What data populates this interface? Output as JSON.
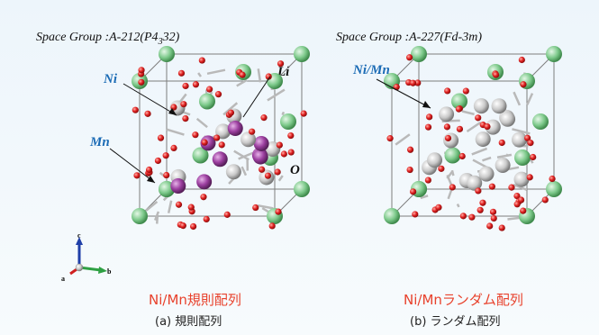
{
  "panel_a": {
    "space_group_prefix": "Space Group :A-212(P4",
    "space_group_sub": "3",
    "space_group_suffix": "32)",
    "label_ni": "Ni",
    "label_mn": "Mn",
    "label_li": "Li",
    "label_o": "O",
    "title": "Ni/Mn規則配列",
    "caption": "(a) 規則配列"
  },
  "panel_b": {
    "space_group": "Space Group :A-227(Fd-3m)",
    "label_nimn": "Ni/Mn",
    "title": "Ni/Mnランダム配列",
    "caption": "(b) ランダム配列"
  },
  "axes": {
    "c": "c",
    "a": "a",
    "b": "b"
  },
  "colors": {
    "li": "#7cc98a",
    "o": "#e02020",
    "ni": "#c8c8c8",
    "mn": "#9c3fa0",
    "title_red": "#e8412c",
    "label_blue": "#1b6bb5"
  }
}
